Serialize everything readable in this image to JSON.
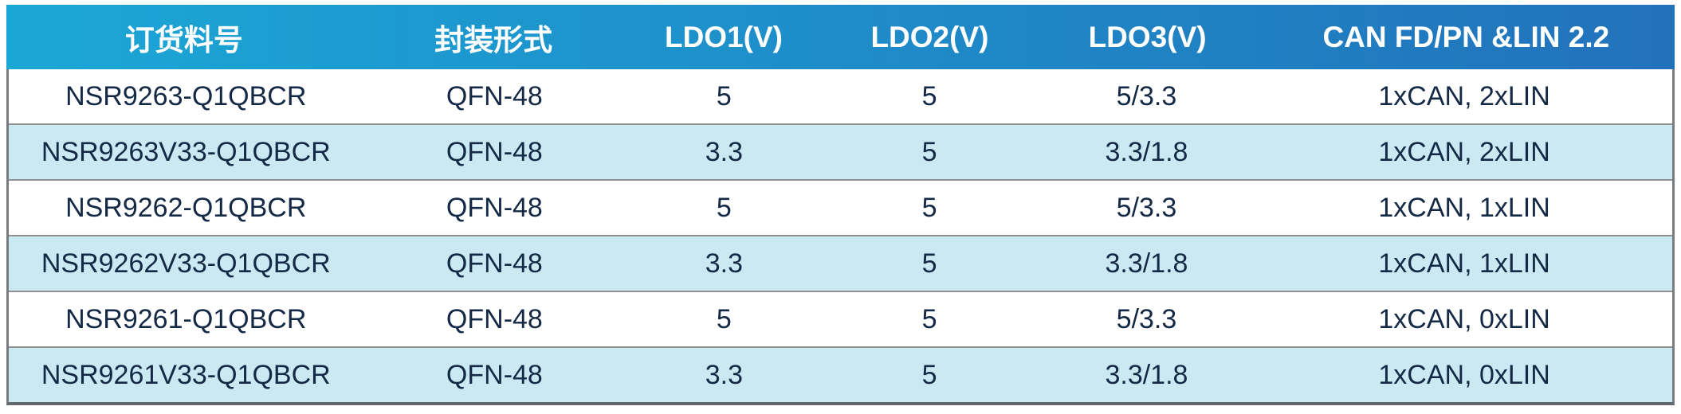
{
  "table": {
    "columns": [
      {
        "key": "order-part-number",
        "label": "订货料号"
      },
      {
        "key": "package-type",
        "label": "封装形式"
      },
      {
        "key": "ldo1-voltage",
        "label": "LDO1(V)"
      },
      {
        "key": "ldo2-voltage",
        "label": "LDO2(V)"
      },
      {
        "key": "ldo3-voltage",
        "label": "LDO3(V)"
      },
      {
        "key": "can-lin-config",
        "label": "CAN FD/PN &LIN 2.2"
      }
    ],
    "rows": [
      [
        "NSR9263-Q1QBCR",
        "QFN-48",
        "5",
        "5",
        "5/3.3",
        "1xCAN, 2xLIN"
      ],
      [
        "NSR9263V33-Q1QBCR",
        "QFN-48",
        "3.3",
        "5",
        "3.3/1.8",
        "1xCAN, 2xLIN"
      ],
      [
        "NSR9262-Q1QBCR",
        "QFN-48",
        "5",
        "5",
        "5/3.3",
        "1xCAN, 1xLIN"
      ],
      [
        "NSR9262V33-Q1QBCR",
        "QFN-48",
        "3.3",
        "5",
        "3.3/1.8",
        "1xCAN, 1xLIN"
      ],
      [
        "NSR9261-Q1QBCR",
        "QFN-48",
        "5",
        "5",
        "5/3.3",
        "1xCAN, 0xLIN"
      ],
      [
        "NSR9261V33-Q1QBCR",
        "QFN-48",
        "3.3",
        "5",
        "3.3/1.8",
        "1xCAN, 0xLIN"
      ]
    ]
  },
  "colors": {
    "header_gradient_left": "#1ba7d6",
    "header_gradient_right": "#2272bb",
    "header_text": "#ffffff",
    "row_default": "#ffffff",
    "row_alt": "#cbe9f3",
    "body_text": "#142945",
    "row_separator": "#919191",
    "outer_border": "#797c7e"
  }
}
